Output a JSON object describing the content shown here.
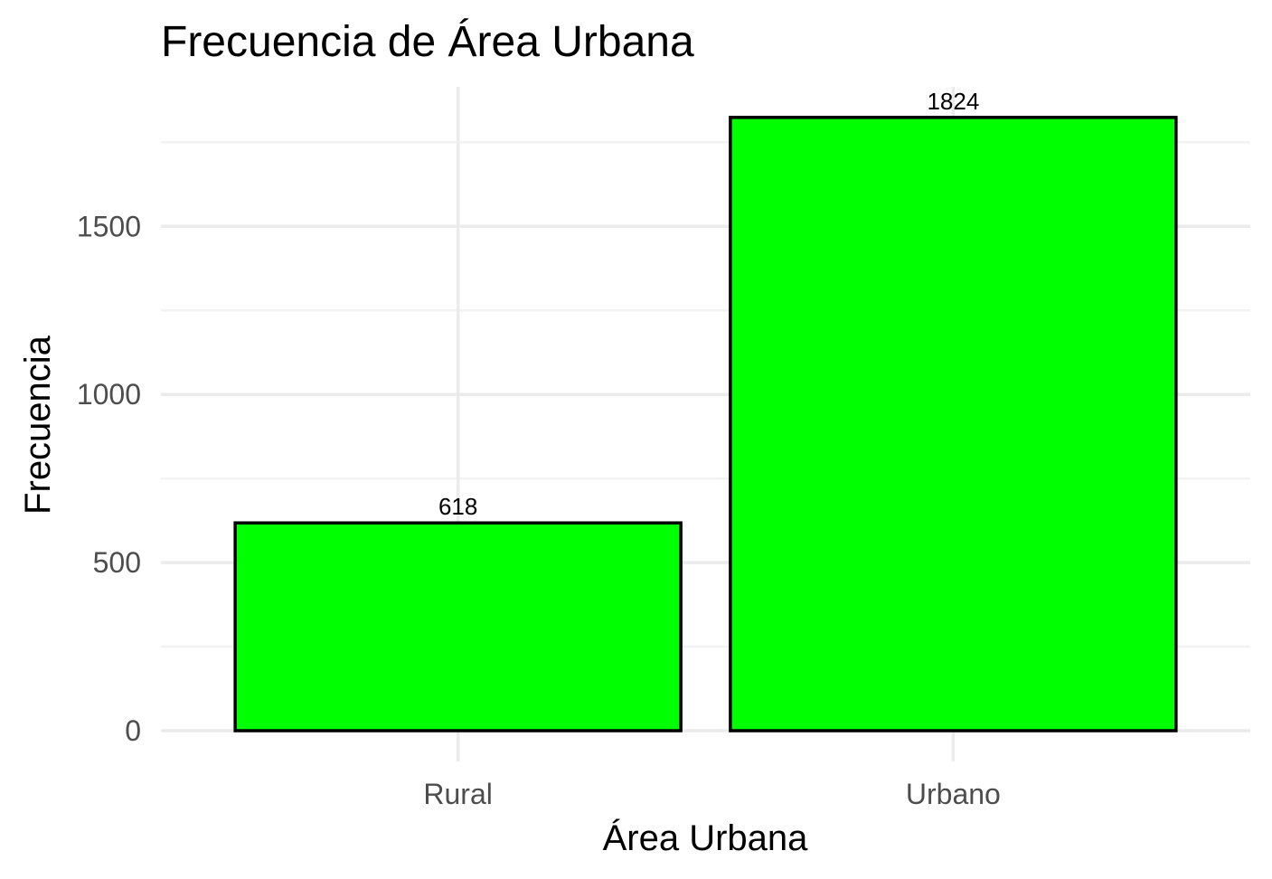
{
  "chart_data": {
    "type": "bar",
    "title": "Frecuencia de Área Urbana",
    "xlabel": "Área Urbana",
    "ylabel": "Frecuencia",
    "categories": [
      "Rural",
      "Urbano"
    ],
    "values": [
      618,
      1824
    ],
    "data_labels": [
      "618",
      "1824"
    ],
    "yticks": [
      0,
      500,
      1000,
      1500
    ],
    "ytick_labels": [
      "0",
      "500",
      "1000",
      "1500"
    ],
    "ylim": [
      0,
      1900
    ],
    "grid": true,
    "legend": "none",
    "colors": {
      "bar_fill": "#00ff00",
      "bar_stroke": "#000000",
      "grid_major": "#ebebeb",
      "grid_minor": "#f2f2f2",
      "tick_text": "#4d4d4d",
      "text": "#000000"
    }
  }
}
